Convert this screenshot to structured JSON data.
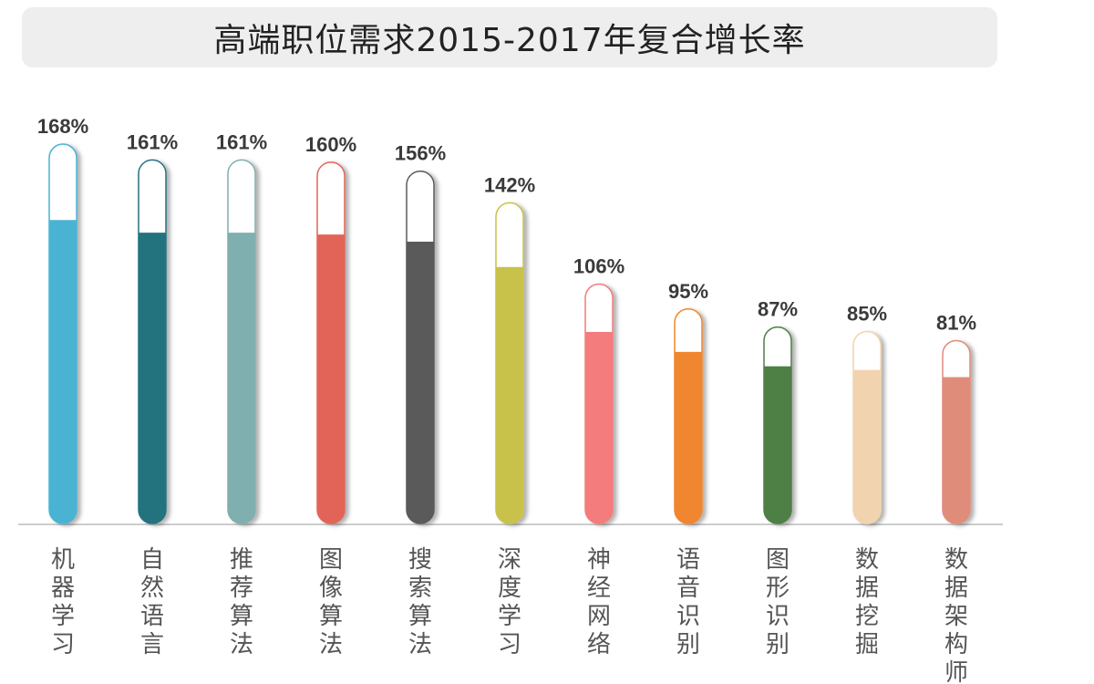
{
  "chart_data": {
    "type": "bar",
    "title": "高端职位需求2015-2017年复合增长率",
    "categories": [
      "机器学习",
      "自然语言",
      "推荐算法",
      "图像算法",
      "搜索算法",
      "深度学习",
      "神经网络",
      "语音识别",
      "图形识别",
      "数据挖掘",
      "数据架构师"
    ],
    "values": [
      168,
      161,
      161,
      160,
      156,
      142,
      106,
      95,
      87,
      85,
      81
    ],
    "value_labels": [
      "168%",
      "161%",
      "161%",
      "160%",
      "156%",
      "142%",
      "106%",
      "95%",
      "87%",
      "85%",
      "81%"
    ],
    "colors": [
      "#4AB3D3",
      "#23737F",
      "#7FAFAE",
      "#E26459",
      "#5A5A5A",
      "#C8C24A",
      "#F47C7C",
      "#F0862F",
      "#4E7F45",
      "#F2D3AF",
      "#E08C7A"
    ],
    "unit": "%",
    "xlabel": "",
    "ylabel": "",
    "grid": false,
    "legend": "none"
  }
}
